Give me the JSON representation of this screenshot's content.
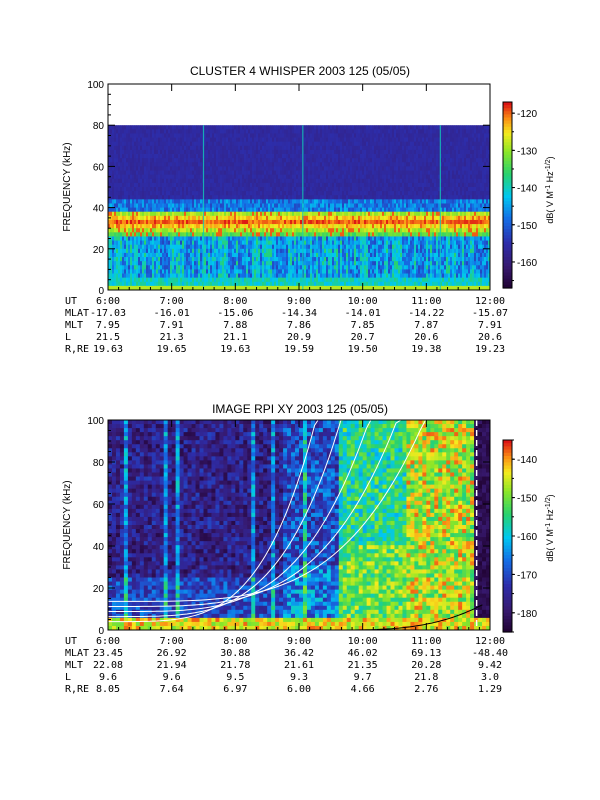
{
  "chart_data": [
    {
      "type": "heatmap",
      "title": "CLUSTER 4 WHISPER 2003 125 (05/05)",
      "ylabel": "FREQUENCY (kHz)",
      "xlabel": "",
      "x_ticks": [
        "6:00",
        "7:00",
        "8:00",
        "9:00",
        "10:00",
        "11:00",
        "12:00"
      ],
      "y_ticks": [
        0,
        20,
        40,
        60,
        80,
        100
      ],
      "ylim": [
        0,
        100
      ],
      "colorbar": {
        "label": "dB( V M⁻¹ Hz⁻¹ᐟ²)",
        "label_parts": [
          "dB( V M",
          "-1",
          " Hz",
          "-1/2",
          ")"
        ],
        "ticks": [
          -120,
          -130,
          -140,
          -150,
          -160
        ],
        "range": [
          -167,
          -117
        ]
      },
      "features": {
        "data_ceiling_khz": 80,
        "plasma_band_khz": [
          28,
          38
        ],
        "background_db": -160
      },
      "ephemeris": {
        "rows": [
          {
            "label": "UT",
            "values": [
              "6:00",
              "7:00",
              "8:00",
              "9:00",
              "10:00",
              "11:00",
              "12:00"
            ]
          },
          {
            "label": "MLAT",
            "values": [
              "-17.03",
              "-16.01",
              "-15.06",
              "-14.34",
              "-14.01",
              "-14.22",
              "-15.07"
            ]
          },
          {
            "label": "MLT",
            "values": [
              "7.95",
              "7.91",
              "7.88",
              "7.86",
              "7.85",
              "7.87",
              "7.91"
            ]
          },
          {
            "label": "L",
            "values": [
              "21.5",
              "21.3",
              "21.1",
              "20.9",
              "20.7",
              "20.6",
              "20.6"
            ]
          },
          {
            "label": "R,RE",
            "values": [
              "19.63",
              "19.65",
              "19.63",
              "19.59",
              "19.50",
              "19.38",
              "19.23"
            ]
          }
        ]
      }
    },
    {
      "type": "heatmap",
      "title": "IMAGE RPI XY 2003 125 (05/05)",
      "ylabel": "FREQUENCY (kHz)",
      "xlabel": "",
      "x_ticks": [
        "6:00",
        "7:00",
        "8:00",
        "9:00",
        "10:00",
        "11:00",
        "12:00"
      ],
      "y_ticks": [
        0,
        20,
        40,
        60,
        80,
        100
      ],
      "ylim": [
        0,
        100
      ],
      "colorbar": {
        "label_parts": [
          "dB( V M",
          "-1",
          " Hz",
          "-1/2",
          ")"
        ],
        "ticks": [
          -140,
          -150,
          -160,
          -170,
          -180
        ],
        "range": [
          -185,
          -135
        ]
      },
      "features": {
        "model_curves": "white frequency-vs-time curves rising steeply before 11:00",
        "background_db": -175
      },
      "ephemeris": {
        "rows": [
          {
            "label": "UT",
            "values": [
              "6:00",
              "7:00",
              "8:00",
              "9:00",
              "10:00",
              "11:00",
              "12:00"
            ]
          },
          {
            "label": "MLAT",
            "values": [
              "23.45",
              "26.92",
              "30.88",
              "36.42",
              "46.02",
              "69.13",
              "-48.40"
            ]
          },
          {
            "label": "MLT",
            "values": [
              "22.08",
              "21.94",
              "21.78",
              "21.61",
              "21.35",
              "20.28",
              "9.42"
            ]
          },
          {
            "label": "L",
            "values": [
              "9.6",
              "9.6",
              "9.5",
              "9.3",
              "9.7",
              "21.8",
              "3.0"
            ]
          },
          {
            "label": "R,RE",
            "values": [
              "8.05",
              "7.64",
              "6.97",
              "6.00",
              "4.66",
              "2.76",
              "1.29"
            ]
          }
        ]
      }
    }
  ]
}
